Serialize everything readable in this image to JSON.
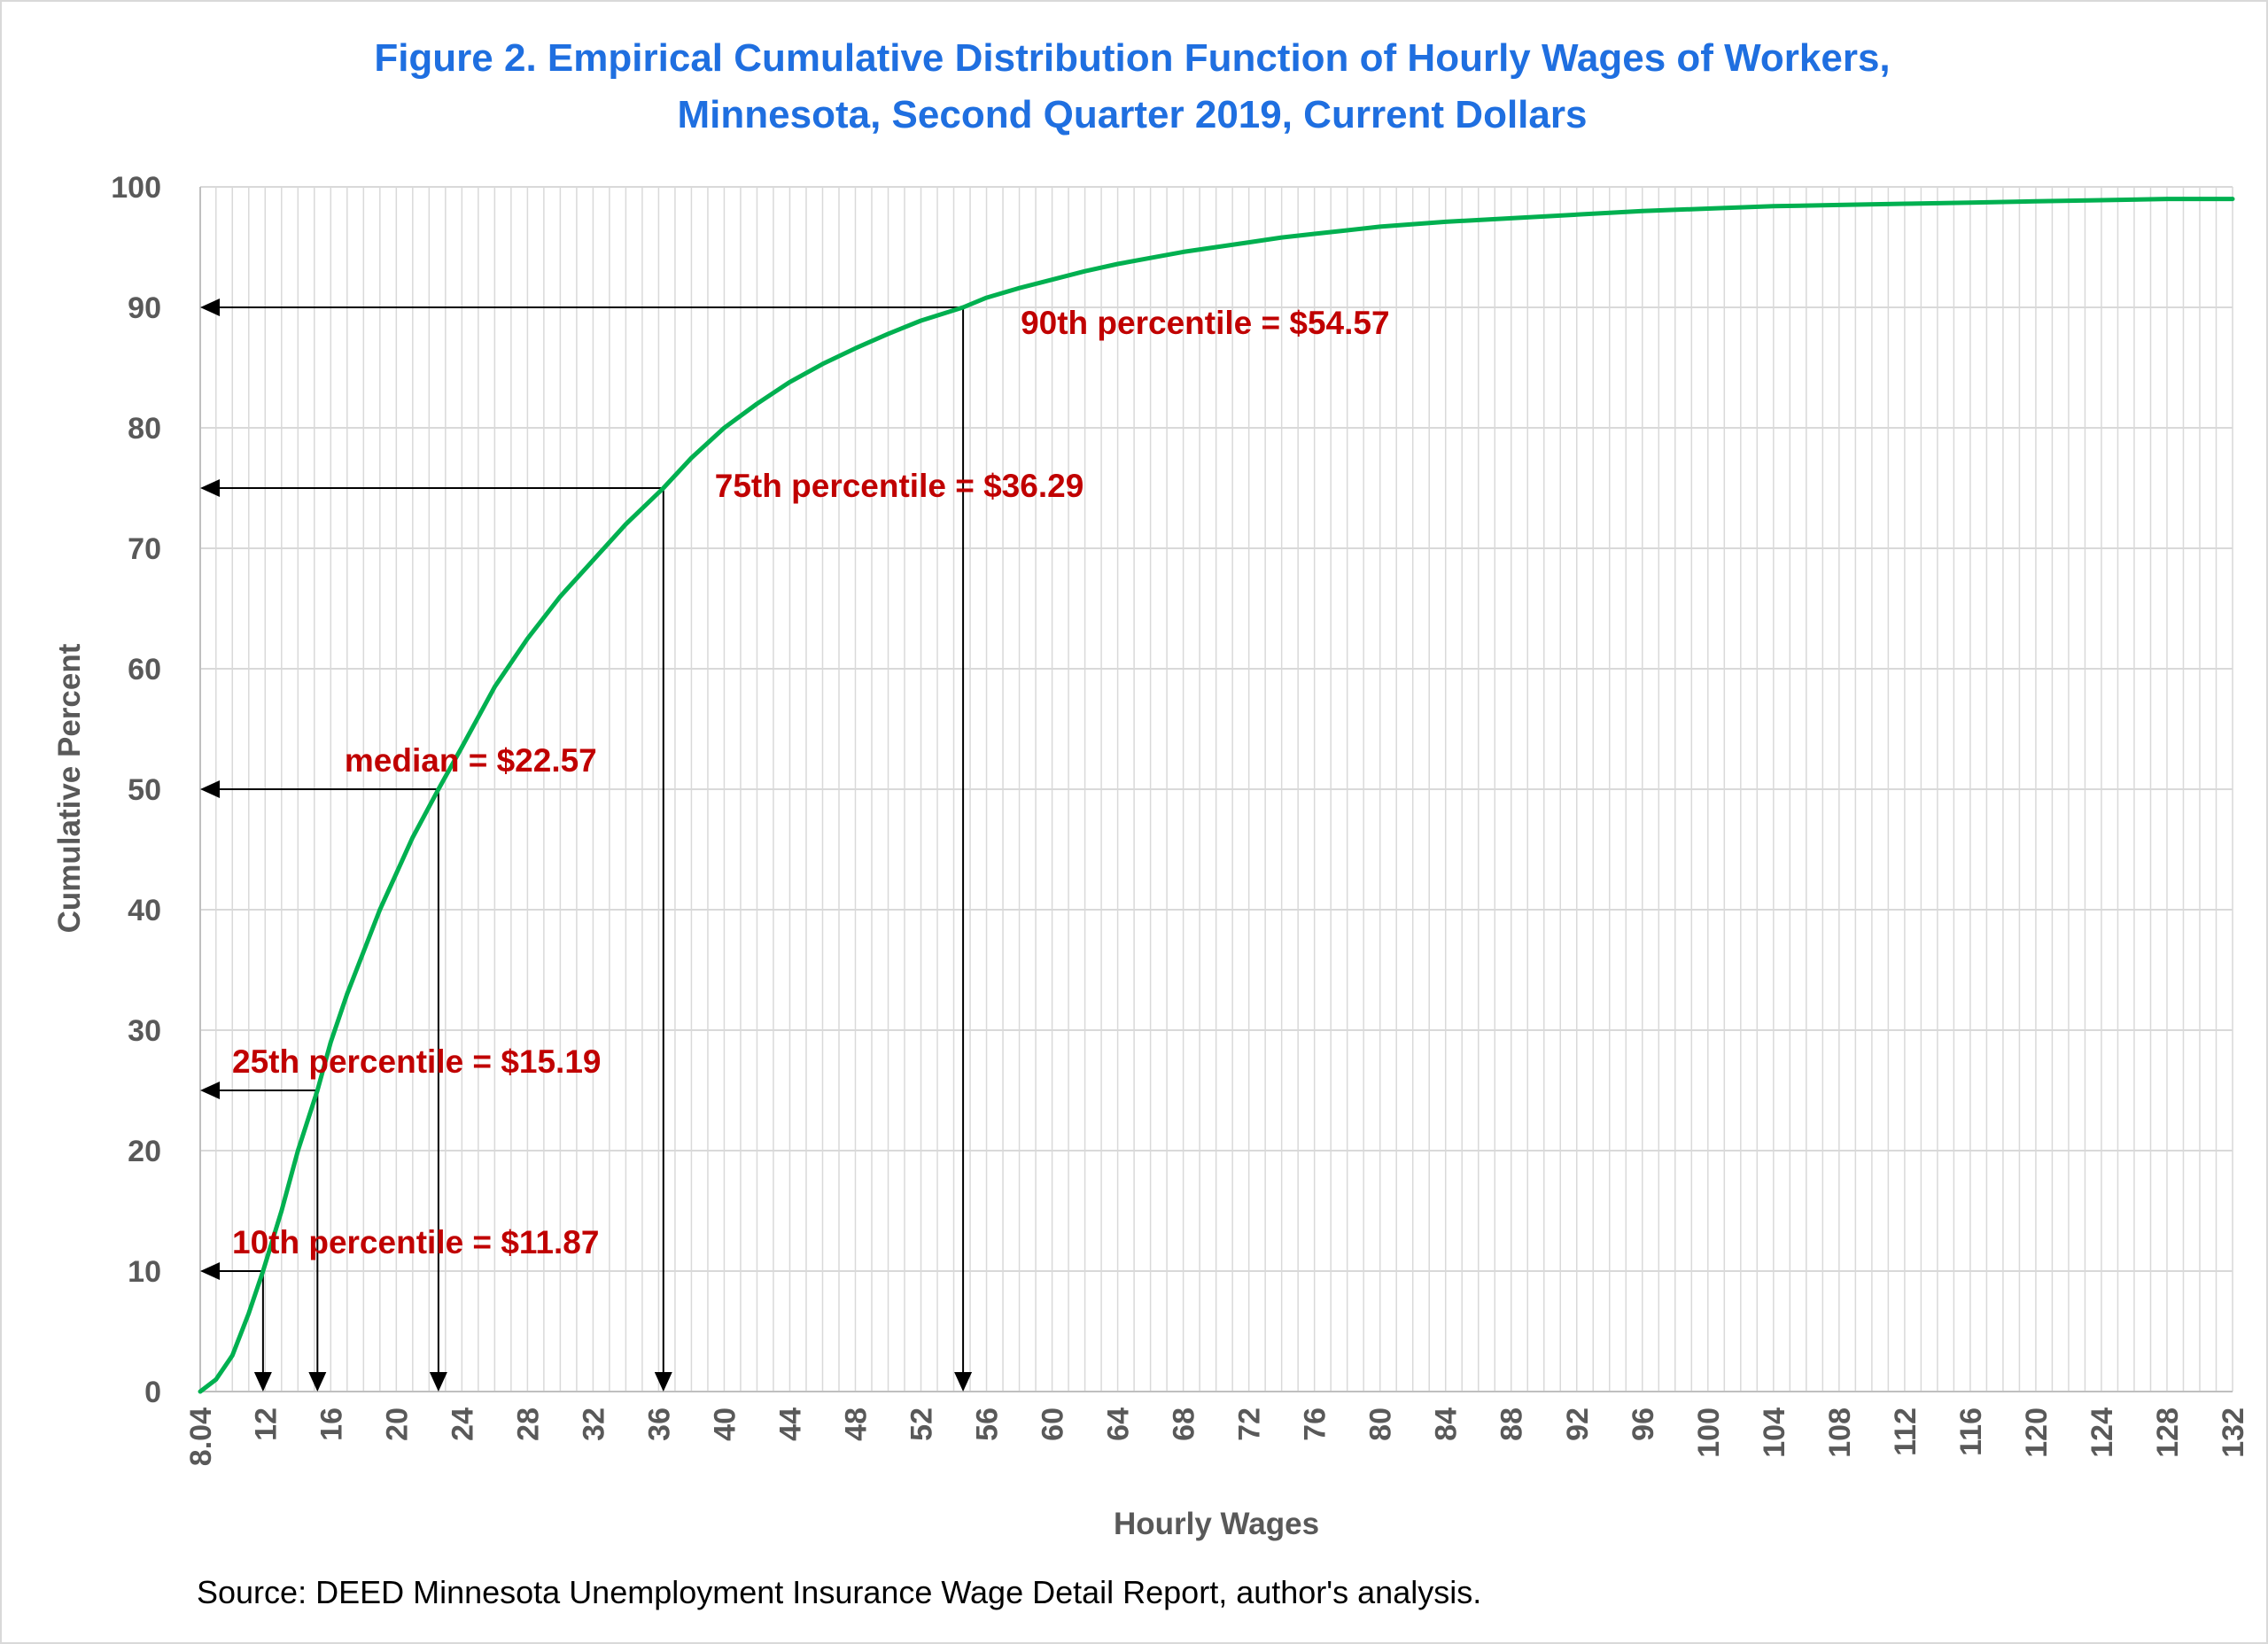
{
  "chart_data": {
    "type": "line",
    "title": "Figure 2. Empirical Cumulative Distribution Function of Hourly Wages of Workers,",
    "subtitle": "Minnesota, Second Quarter 2019, Current Dollars",
    "xlabel": "Hourly Wages",
    "ylabel": "Cumulative Percent",
    "xlim": [
      8.04,
      132
    ],
    "ylim": [
      0,
      100
    ],
    "grid": true,
    "xtick_labels": [
      "8.04",
      "12",
      "16",
      "20",
      "24",
      "28",
      "32",
      "36",
      "40",
      "44",
      "48",
      "52",
      "56",
      "60",
      "64",
      "68",
      "72",
      "76",
      "80",
      "84",
      "88",
      "92",
      "96",
      "100",
      "104",
      "108",
      "112",
      "116",
      "120",
      "124",
      "128",
      "132"
    ],
    "ytick_labels": [
      "0",
      "10",
      "20",
      "30",
      "40",
      "50",
      "60",
      "70",
      "80",
      "90",
      "100"
    ],
    "series": [
      {
        "color": "#00b050",
        "x": [
          8.04,
          9,
          10,
          11,
          11.87,
          13,
          14,
          15.19,
          16,
          17,
          18,
          19,
          20,
          21,
          22.57,
          24,
          25,
          26,
          28,
          30,
          32,
          34,
          36.29,
          38,
          40,
          42,
          44,
          46,
          48,
          50,
          52,
          54.57,
          56,
          58,
          60,
          62,
          64,
          66,
          68,
          70,
          72,
          74,
          76,
          78,
          80,
          84,
          88,
          92,
          96,
          100,
          104,
          108,
          112,
          116,
          120,
          124,
          128,
          132
        ],
        "y": [
          0,
          1,
          3,
          6.5,
          10,
          15,
          20,
          25,
          29,
          33,
          36.5,
          40,
          43,
          46,
          50,
          53.5,
          56,
          58.5,
          62.5,
          66,
          69,
          72,
          75,
          77.5,
          80,
          82,
          83.8,
          85.3,
          86.6,
          87.8,
          88.9,
          90,
          90.8,
          91.6,
          92.3,
          93,
          93.6,
          94.1,
          94.6,
          95,
          95.4,
          95.8,
          96.1,
          96.4,
          96.7,
          97.1,
          97.4,
          97.7,
          98,
          98.2,
          98.4,
          98.5,
          98.6,
          98.7,
          98.8,
          98.9,
          99,
          99
        ]
      }
    ],
    "annotations": [
      {
        "text": "10th percentile = $11.87",
        "x": 11.87,
        "y": 10
      },
      {
        "text": "25th percentile = $15.19",
        "x": 15.19,
        "y": 25
      },
      {
        "text": "median = $22.57",
        "x": 22.57,
        "y": 50
      },
      {
        "text": "75th percentile = $36.29",
        "x": 36.29,
        "y": 75
      },
      {
        "text": "90th percentile = $54.57",
        "x": 54.57,
        "y": 90
      }
    ],
    "source": "Source: DEED Minnesota Unemployment Insurance Wage Detail Report, author's analysis."
  }
}
